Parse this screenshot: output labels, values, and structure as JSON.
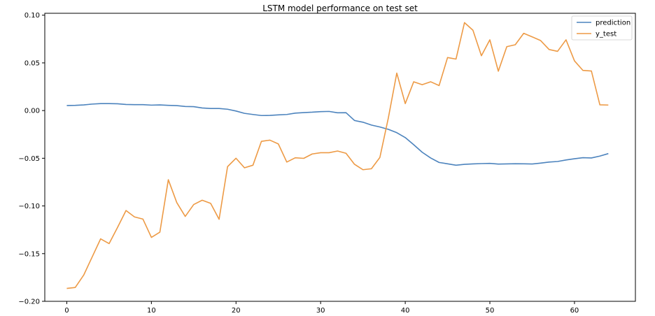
{
  "chart_data": {
    "type": "line",
    "title": "LSTM model performance on test set",
    "xlabel": "",
    "ylabel": "",
    "xlim": [
      -2.6,
      67.2
    ],
    "ylim": [
      -0.2,
      0.102
    ],
    "x_ticks": [
      0,
      10,
      20,
      30,
      40,
      50,
      60
    ],
    "x_tick_labels": [
      "0",
      "10",
      "20",
      "30",
      "40",
      "50",
      "60"
    ],
    "y_ticks": [
      0.1,
      0.05,
      0.0,
      -0.05,
      -0.1,
      -0.15,
      -0.2
    ],
    "y_tick_labels": [
      "0.10",
      "0.05",
      "0.00",
      "−0.05",
      "−0.10",
      "−0.15",
      "−0.20"
    ],
    "grid": false,
    "legend_position": "top-right",
    "x": [
      0,
      1,
      2,
      3,
      4,
      5,
      6,
      7,
      8,
      9,
      10,
      11,
      12,
      13,
      14,
      15,
      16,
      17,
      18,
      19,
      20,
      21,
      22,
      23,
      24,
      25,
      26,
      27,
      28,
      29,
      30,
      31,
      32,
      33,
      34,
      35,
      36,
      37,
      38,
      39,
      40,
      41,
      42,
      43,
      44,
      45,
      46,
      47,
      48,
      49,
      50,
      51,
      52,
      53,
      54,
      55,
      56,
      57,
      58,
      59,
      60,
      61,
      62,
      63,
      64
    ],
    "series": [
      {
        "name": "prediction",
        "color": "#4c83bd",
        "values": [
          0.0053,
          0.0055,
          0.0059,
          0.0068,
          0.0073,
          0.0073,
          0.0071,
          0.0064,
          0.0062,
          0.0062,
          0.0057,
          0.0059,
          0.0055,
          0.0052,
          0.0043,
          0.0041,
          0.0027,
          0.0022,
          0.0022,
          0.0014,
          -0.0005,
          -0.0029,
          -0.0041,
          -0.0052,
          -0.0051,
          -0.0045,
          -0.0041,
          -0.0027,
          -0.0021,
          -0.0017,
          -0.0011,
          -0.0009,
          -0.0023,
          -0.0022,
          -0.0104,
          -0.0122,
          -0.0152,
          -0.0172,
          -0.0197,
          -0.0232,
          -0.0283,
          -0.0358,
          -0.0437,
          -0.0497,
          -0.0544,
          -0.0558,
          -0.0573,
          -0.0564,
          -0.0559,
          -0.0556,
          -0.0554,
          -0.0561,
          -0.0559,
          -0.0557,
          -0.0558,
          -0.056,
          -0.0551,
          -0.054,
          -0.0534,
          -0.0518,
          -0.0505,
          -0.0494,
          -0.0497,
          -0.0477,
          -0.0451
        ]
      },
      {
        "name": "y_test",
        "color": "#ed9a45",
        "values": [
          -0.1865,
          -0.1855,
          -0.1725,
          -0.1535,
          -0.1345,
          -0.1395,
          -0.1225,
          -0.1048,
          -0.1115,
          -0.1138,
          -0.133,
          -0.1275,
          -0.0725,
          -0.0965,
          -0.111,
          -0.0985,
          -0.094,
          -0.0973,
          -0.114,
          -0.0588,
          -0.05,
          -0.06,
          -0.0573,
          -0.0323,
          -0.031,
          -0.035,
          -0.054,
          -0.0495,
          -0.0501,
          -0.0455,
          -0.0442,
          -0.0442,
          -0.0424,
          -0.0448,
          -0.0563,
          -0.062,
          -0.061,
          -0.0492,
          -0.0078,
          0.0393,
          0.0073,
          0.0302,
          0.0271,
          0.0302,
          0.0262,
          0.0556,
          0.054,
          0.0922,
          0.0842,
          0.0575,
          0.0742,
          0.0413,
          0.067,
          0.069,
          0.081,
          0.0773,
          0.0734,
          0.064,
          0.0621,
          0.0742,
          0.0521,
          0.0421,
          0.0415,
          0.006,
          0.0058
        ]
      }
    ]
  }
}
